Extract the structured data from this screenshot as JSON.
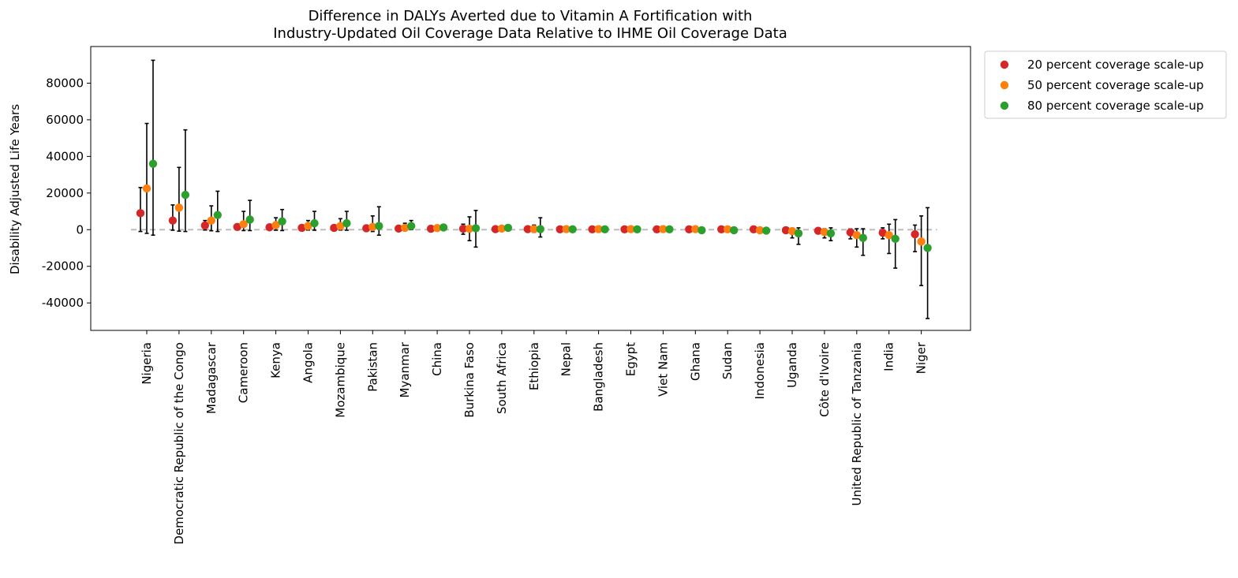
{
  "chart_data": {
    "type": "scatter",
    "title_lines": [
      "Difference in DALYs Averted due to Vitamin A Fortification with",
      "Industry-Updated Oil Coverage Data Relative to IHME Oil Coverage Data"
    ],
    "xlabel": "",
    "ylabel": "Disability Adjusted Life Years",
    "ylim": [
      -55000,
      100000
    ],
    "yticks": [
      -40000,
      -20000,
      0,
      20000,
      40000,
      60000,
      80000
    ],
    "reference_line": {
      "y": 0,
      "style": "dashed",
      "color": "#bdbdbd"
    },
    "legend_position": "upper right, outside plot",
    "grid": false,
    "categories": [
      "Nigeria",
      "Democratic Republic of the Congo",
      "Madagascar",
      "Cameroon",
      "Kenya",
      "Angola",
      "Mozambique",
      "Pakistan",
      "Myanmar",
      "China",
      "Burkina Faso",
      "South Africa",
      "Ethiopia",
      "Nepal",
      "Bangladesh",
      "Egypt",
      "Viet Nam",
      "Ghana",
      "Sudan",
      "Indonesia",
      "Uganda",
      "Côte d'Ivoire",
      "United Republic of Tanzania",
      "India",
      "Niger"
    ],
    "series": [
      {
        "name": "20 percent coverage scale-up",
        "color": "#d62728",
        "values": [
          9000,
          5000,
          2300,
          1500,
          1300,
          1000,
          1000,
          800,
          600,
          500,
          500,
          300,
          300,
          200,
          200,
          200,
          200,
          200,
          200,
          200,
          -300,
          -600,
          -1500,
          -1700,
          -2500
        ],
        "lower": [
          -1000,
          -300,
          -200,
          -200,
          -100,
          -100,
          -100,
          -400,
          0,
          0,
          -2500,
          -100,
          -300,
          0,
          0,
          0,
          0,
          -100,
          -100,
          0,
          -1500,
          -2000,
          -5000,
          -5000,
          -12000
        ],
        "upper": [
          23000,
          13500,
          5000,
          3000,
          2500,
          2000,
          2000,
          1800,
          1200,
          1000,
          3000,
          600,
          1000,
          300,
          400,
          300,
          300,
          300,
          300,
          300,
          400,
          200,
          400,
          1000,
          2500
        ]
      },
      {
        "name": "50 percent coverage scale-up",
        "color": "#ff7f0e",
        "values": [
          22500,
          12000,
          5000,
          3000,
          2500,
          2000,
          2000,
          1500,
          1000,
          900,
          500,
          600,
          300,
          300,
          300,
          300,
          300,
          300,
          200,
          -300,
          -800,
          -1300,
          -3000,
          -3000,
          -6500
        ],
        "lower": [
          -2000,
          -800,
          -600,
          -500,
          -300,
          -200,
          -200,
          -1000,
          0,
          0,
          -6000,
          0,
          -1500,
          0,
          0,
          0,
          0,
          -200,
          -300,
          -800,
          -4500,
          -4500,
          -9500,
          -13000,
          -30500
        ],
        "upper": [
          58000,
          34000,
          13000,
          10000,
          6500,
          5000,
          6000,
          7500,
          3500,
          1800,
          7000,
          1200,
          2500,
          500,
          600,
          500,
          500,
          500,
          400,
          200,
          800,
          500,
          500,
          3000,
          7500
        ]
      },
      {
        "name": "80 percent coverage scale-up",
        "color": "#2ca02c",
        "values": [
          36000,
          19000,
          8000,
          5500,
          4500,
          3500,
          3500,
          2000,
          2000,
          1200,
          800,
          1000,
          300,
          200,
          200,
          200,
          200,
          -300,
          -300,
          -500,
          -2000,
          -2000,
          -4500,
          -5000,
          -10000
        ],
        "lower": [
          -3000,
          -1000,
          -1000,
          -500,
          -500,
          -300,
          -300,
          -3000,
          0,
          0,
          -9500,
          0,
          -4000,
          0,
          0,
          0,
          0,
          -500,
          -600,
          -1200,
          -8000,
          -6000,
          -14000,
          -21000,
          -48500
        ],
        "upper": [
          92500,
          54500,
          21000,
          16000,
          11000,
          10000,
          10000,
          12500,
          5000,
          2500,
          10500,
          2000,
          6500,
          600,
          700,
          600,
          600,
          600,
          500,
          400,
          1000,
          1000,
          500,
          5500,
          12000
        ]
      }
    ]
  }
}
